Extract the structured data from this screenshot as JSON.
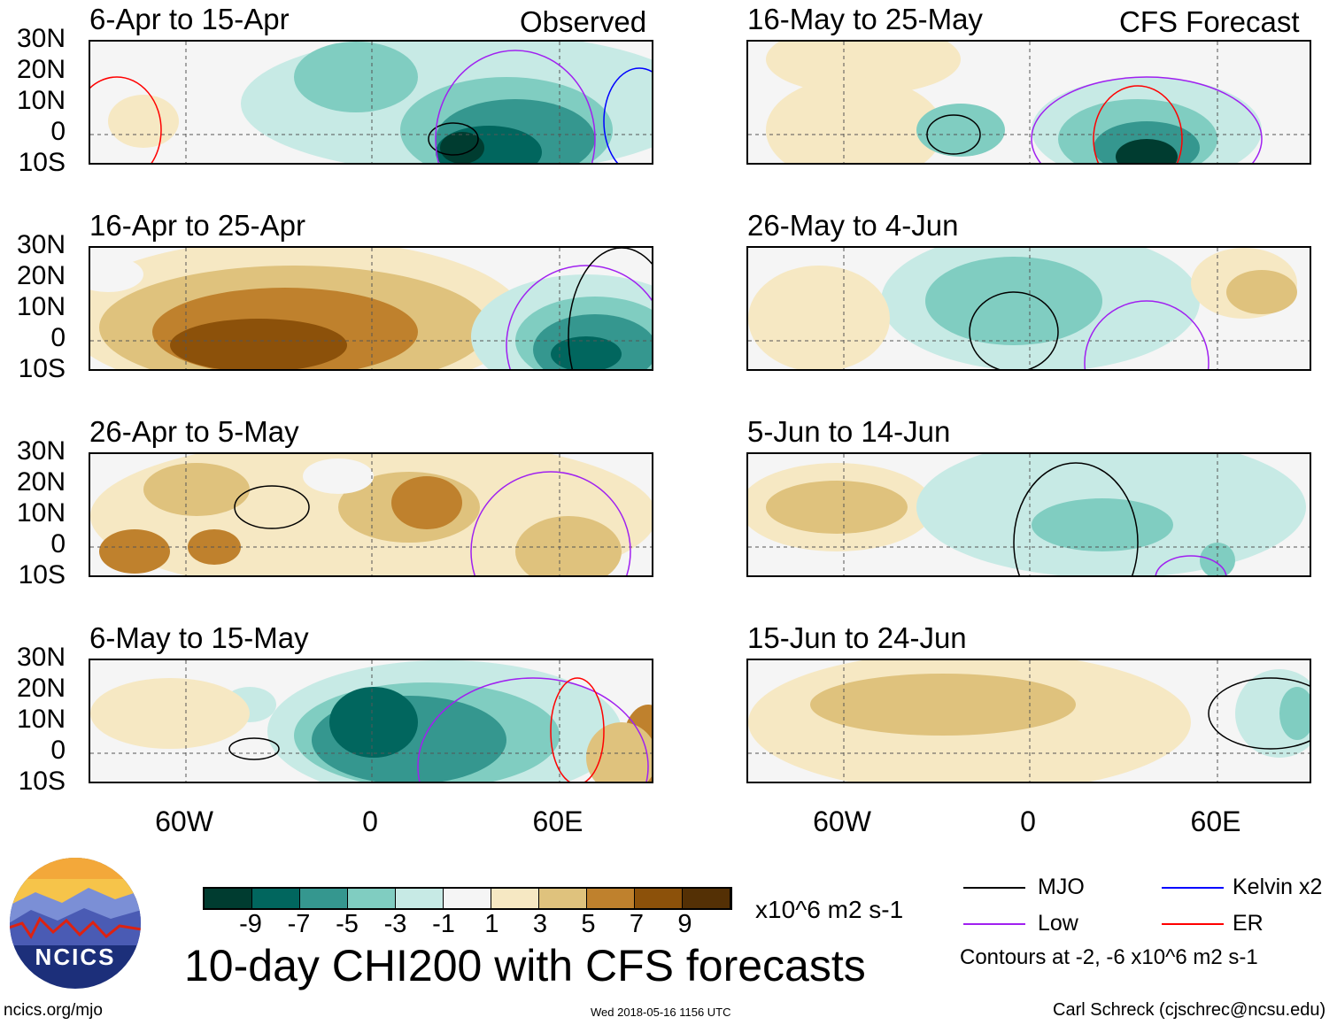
{
  "header": {
    "observed_label": "Observed",
    "forecast_label": "CFS Forecast"
  },
  "lat_labels": [
    "30N",
    "20N",
    "10N",
    "0",
    "10S"
  ],
  "lon_labels": [
    "60W",
    "0",
    "60E"
  ],
  "panels": [
    {
      "title": "6-Apr to 15-Apr",
      "group": "observed"
    },
    {
      "title": "16-Apr to 25-Apr",
      "group": "observed"
    },
    {
      "title": "26-Apr to 5-May",
      "group": "observed"
    },
    {
      "title": "6-May to 15-May",
      "group": "observed"
    },
    {
      "title": "16-May to 25-May",
      "group": "forecast"
    },
    {
      "title": "26-May to 4-Jun",
      "group": "forecast"
    },
    {
      "title": "5-Jun to 14-Jun",
      "group": "forecast"
    },
    {
      "title": "15-Jun to 24-Jun",
      "group": "forecast"
    }
  ],
  "colorbar": {
    "colors": [
      "#003c30",
      "#01665e",
      "#35978f",
      "#80cdc1",
      "#c7eae5",
      "#f5f5f5",
      "#f6e8c3",
      "#dfc27d",
      "#bf812d",
      "#8c510a",
      "#543005"
    ],
    "ticks": [
      "-9",
      "-7",
      "-5",
      "-3",
      "-1",
      "1",
      "3",
      "5",
      "7",
      "9"
    ],
    "units": "x10^6 m2 s-1"
  },
  "title": "10-day CHI200 with CFS forecasts",
  "legend": {
    "items": [
      {
        "label": "MJO",
        "color": "#000000"
      },
      {
        "label": "Low",
        "color": "#a020f0"
      },
      {
        "label": "Kelvin x2",
        "color": "#0000ff"
      },
      {
        "label": "ER",
        "color": "#ff0000"
      }
    ],
    "note": "Contours at -2, -6 x10^6 m2 s-1"
  },
  "logo": {
    "text": "NCICS"
  },
  "footer": {
    "url": "ncics.org/mjo",
    "timestamp": "Wed 2018-05-16 1156 UTC",
    "credit": "Carl Schreck (cjschrec@ncsu.edu)"
  }
}
